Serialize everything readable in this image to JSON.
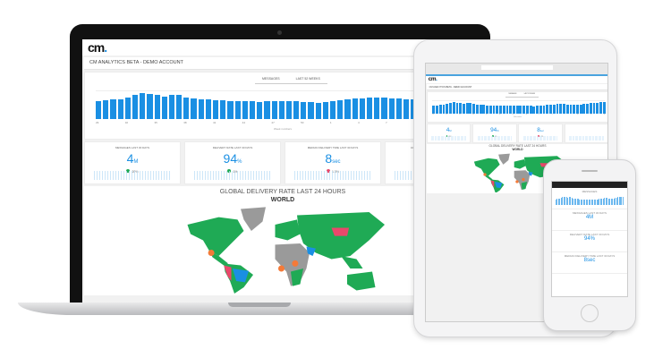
{
  "brand": {
    "logo": "cm",
    "accent": "#1a8fe3",
    "green": "#1faa55",
    "red": "#e9486b",
    "grey": "#9a9a9a",
    "orange": "#f47a38"
  },
  "dashboard": {
    "title": "CM ANALYTICS BETA - DEMO ACCOUNT",
    "chart": {
      "tabs": [
        "MESSAGES",
        "LAST 52 WEEKS"
      ],
      "xlabel": "Week numbers",
      "x_ticks": [
        "29",
        "32",
        "35",
        "38",
        "41",
        "44",
        "47",
        "50",
        "1",
        "4",
        "7",
        "10",
        "13",
        "16"
      ],
      "values": [
        9,
        9.5,
        10,
        10,
        11,
        12,
        13,
        12.5,
        12,
        11.5,
        12,
        12,
        11,
        10.5,
        10,
        10,
        9.5,
        9.5,
        9,
        9,
        9,
        9,
        8.5,
        9,
        9,
        9,
        9,
        9,
        8.5,
        8.5,
        8,
        8.5,
        9,
        9.5,
        10,
        10.5,
        10.5,
        11,
        11,
        11,
        10.5,
        10.5,
        10,
        10,
        10.5,
        11,
        11.5,
        12,
        12,
        12.5,
        13,
        13
      ]
    },
    "kpis": [
      {
        "title": "MESSAGES LAST 30 DAYS",
        "value": "4",
        "unit": "M",
        "delta": "20%",
        "delta_color": "#1faa55"
      },
      {
        "title": "DELIVERY RATE LAST 30 DAYS",
        "value": "94",
        "unit": "%",
        "delta": "1%",
        "delta_color": "#1faa55"
      },
      {
        "title": "MEDIAN DELIVERY TIME LAST 30 DAYS",
        "value": "8",
        "unit": "sec",
        "delta": "1.5%",
        "delta_color": "#e9486b"
      },
      {
        "title": "CONVERSION RATE LAST 30 DAYS",
        "value": "",
        "unit": "",
        "delta": "",
        "delta_color": "#1faa55"
      }
    ],
    "map": {
      "title": "GLOBAL DELIVERY RATE LAST 24 HOURS",
      "selector": "WORLD"
    }
  }
}
